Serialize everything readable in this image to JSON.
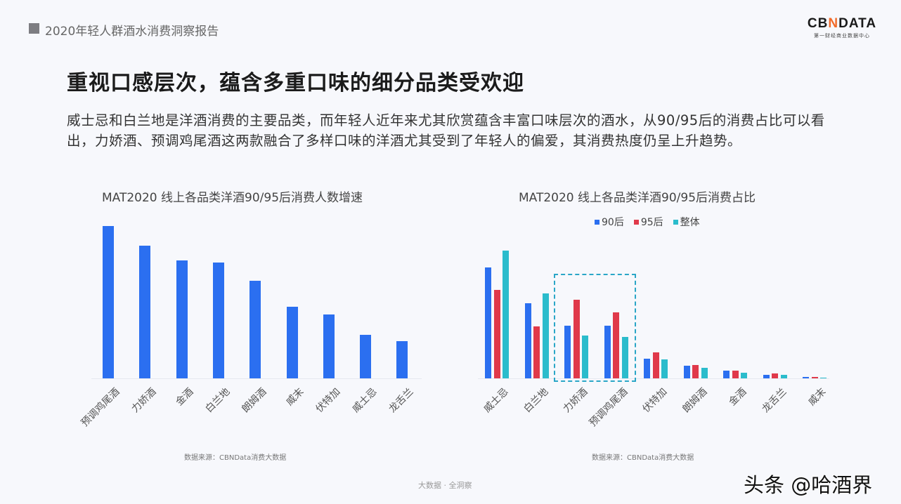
{
  "header": {
    "report_title": "2020年轻人群酒水消费洞察报告",
    "logo": {
      "main_prefix": "CB",
      "main_x": "N",
      "main_suffix": "DATA",
      "tagline": "第一财经商业数据中心"
    }
  },
  "headline": "重视口感层次，蕴含多重口味的细分品类受欢迎",
  "body_text": "威士忌和白兰地是洋酒消费的主要品类，而年轻人近年来尤其欣赏蕴含丰富口味层次的酒水，从90/95后的消费占比可以看出，力娇酒、预调鸡尾酒这两款融合了多样口味的洋酒尤其受到了年轻人的偏爱，其消费热度仍呈上升趋势。",
  "colors": {
    "blue": "#2b6ff0",
    "red": "#e0394a",
    "teal": "#2bbccc",
    "highlight": "#2aa6c7"
  },
  "chart_data": [
    {
      "type": "bar",
      "title": "MAT2020 线上各品类洋酒90/95后消费人数增速",
      "xlabel": "",
      "ylabel": "",
      "categories": [
        "预调鸡尾酒",
        "力娇酒",
        "金酒",
        "白兰地",
        "朗姆酒",
        "威末",
        "伏特加",
        "威士忌",
        "龙舌兰"
      ],
      "values": [
        217,
        189,
        168,
        165,
        139,
        102,
        91,
        62,
        53
      ],
      "value_note": "relative bar heights (px), no axis values shown",
      "ylim": [
        0,
        230
      ],
      "grid": false,
      "legend": null,
      "source": "数据来源：CBNData消费大数据"
    },
    {
      "type": "bar",
      "title": "MAT2020 线上各品类洋酒90/95后消费占比",
      "xlabel": "",
      "ylabel": "",
      "categories": [
        "威士忌",
        "白兰地",
        "力娇酒",
        "预调鸡尾酒",
        "伏特加",
        "朗姆酒",
        "金酒",
        "龙舌兰",
        "威末"
      ],
      "series": [
        {
          "name": "90后",
          "values": [
            158,
            107,
            75,
            75,
            28,
            18,
            11,
            5,
            2
          ]
        },
        {
          "name": "95后",
          "values": [
            126,
            74,
            112,
            94,
            37,
            19,
            11,
            7,
            2
          ]
        },
        {
          "name": "整体",
          "values": [
            182,
            121,
            61,
            59,
            27,
            15,
            8,
            5,
            1
          ]
        }
      ],
      "value_note": "relative bar heights (px), no axis values shown",
      "ylim": [
        0,
        190
      ],
      "grid": false,
      "legend_position": "top-center",
      "annotations": [
        "dashed box highlighting 力娇酒 and 预调鸡尾酒"
      ],
      "source": "数据来源：CBNData消费大数据"
    }
  ],
  "footer": {
    "center_text": "大数据 · 全洞察",
    "watermark": "头条 @哈酒界"
  }
}
